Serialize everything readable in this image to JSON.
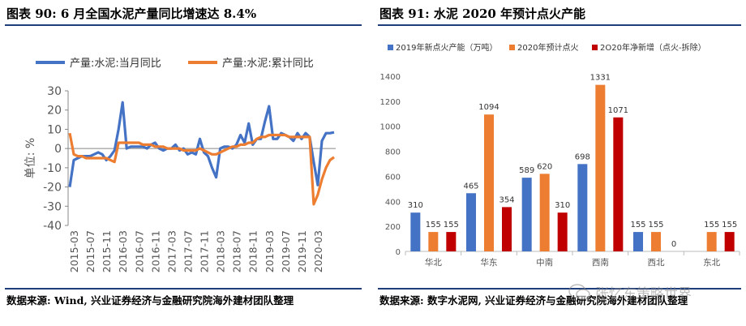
{
  "left": {
    "title": "图表 90:  6 月全国水泥产量同比增速达 8.4%",
    "source": "数据来源: Wind, 兴业证券经济与金融研究院海外建材团队整理",
    "chart_data": {
      "type": "line",
      "ylabel": "单位: %",
      "ylim": [
        -40,
        30
      ],
      "yticks": [
        30,
        20,
        10,
        0,
        -10,
        -20,
        -30,
        -40
      ],
      "xtick_labels": [
        "2015-03",
        "2015-07",
        "2015-11",
        "2016-03",
        "2016-07",
        "2016-11",
        "2017-03",
        "2017-07",
        "2017-11",
        "2018-03",
        "2018-07",
        "2018-11",
        "2019-03",
        "2019-07",
        "2019-11",
        "2020-03"
      ],
      "x_start": "2015-02",
      "series": [
        {
          "name": "产量:水泥:当月同比",
          "color": "#4472C4",
          "values": [
            -20,
            -6,
            -5,
            -4,
            -4,
            -4,
            -3,
            -2,
            -3,
            -6,
            -4,
            -1,
            10,
            24,
            0,
            1,
            1,
            1,
            1,
            0,
            2,
            3,
            0,
            -1,
            0,
            0,
            2,
            -1,
            0,
            -3,
            -2,
            -3,
            5,
            -2,
            -4,
            -10,
            -15,
            0,
            1,
            1,
            0,
            2,
            7,
            3,
            13,
            2,
            5,
            5,
            14,
            22,
            5,
            5,
            8,
            7,
            6,
            4,
            8,
            5,
            8,
            6,
            -7,
            -19,
            4,
            8,
            8,
            8.4
          ]
        },
        {
          "name": "产量:水泥:累计同比",
          "color": "#ED7D31",
          "values": [
            8,
            -3,
            -4,
            -4,
            -5,
            -5,
            -5,
            -5,
            -5,
            -5,
            -6,
            -7,
            3,
            3,
            3,
            3,
            3,
            3,
            2,
            2,
            2,
            1,
            1,
            1,
            0,
            0,
            0,
            0,
            -1,
            -1,
            -1,
            -1,
            0,
            -1,
            -2,
            -3,
            -3,
            -2,
            -1,
            0,
            1,
            1,
            2,
            2,
            3,
            3,
            5,
            6,
            6,
            7,
            7,
            7,
            7,
            7,
            6,
            6,
            6,
            6,
            6,
            6,
            -29,
            -24,
            -16,
            -10,
            -6,
            -4.5
          ]
        }
      ]
    }
  },
  "right": {
    "title": "图表 91:  水泥 2020 年预计点火产能",
    "source": "数据来源: 数字水泥网, 兴业证券经济与金融研究院海外建材团队整理",
    "chart_data": {
      "type": "bar",
      "categories": [
        "华北",
        "华东",
        "中南",
        "西南",
        "西北",
        "东北"
      ],
      "ylim": [
        0,
        1400
      ],
      "yticks": [
        0,
        200,
        400,
        600,
        800,
        1000,
        1200,
        1400
      ],
      "series": [
        {
          "name": "2019年新点火产能（万吨）",
          "color": "#4472C4",
          "values": [
            310,
            465,
            589,
            698,
            155,
            0
          ],
          "labels": [
            "310",
            "465",
            "589",
            "698",
            "155",
            ""
          ]
        },
        {
          "name": "2020年预计点火",
          "color": "#ED7D31",
          "values": [
            155,
            1094,
            620,
            1331,
            155,
            155
          ],
          "labels": [
            "155",
            "1094",
            "620",
            "1331",
            "155",
            "155"
          ]
        },
        {
          "name": "2O20年净新增（点火-拆除）",
          "color": "#C00000",
          "values": [
            155,
            354,
            310,
            1071,
            0,
            155
          ],
          "labels": [
            "155",
            "354",
            "310",
            "1071",
            "0",
            "155"
          ]
        }
      ]
    }
  },
  "watermark": "张忆东策略世界"
}
